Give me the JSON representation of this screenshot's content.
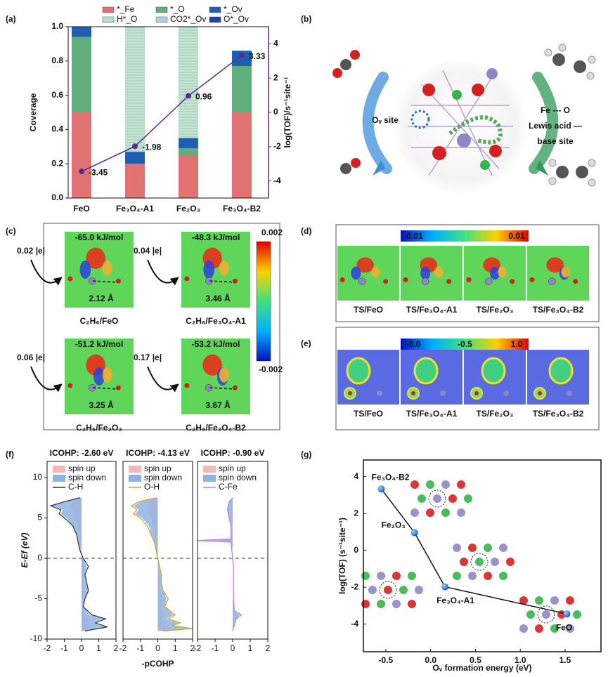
{
  "chart_data": [
    {
      "type": "bar",
      "stacked": true,
      "ylabel": "Coverage",
      "y2label": "log(TOF)/s⁻¹site⁻¹",
      "categories": [
        "FeO",
        "Fe₃O₄-A1",
        "Fe₂O₃",
        "Fe₃O₄-B2"
      ],
      "ylim": [
        0,
        1
      ],
      "yticks": [
        {
          "value": 0,
          "label": "0.0"
        },
        0.2,
        0.4,
        0.6,
        0.8,
        {
          "value": 1,
          "label": "1.0"
        }
      ],
      "y2lim": [
        -5,
        5
      ],
      "y2ticks": [
        -4,
        -2,
        0,
        2,
        4
      ],
      "series": [
        {
          "name": "*_Fe",
          "color": "#e07272",
          "values": [
            0.5,
            0.2,
            0.25,
            0.5
          ]
        },
        {
          "name": "*_O",
          "color": "#5fae7c",
          "values": [
            0.44,
            0,
            0.04,
            0.27
          ]
        },
        {
          "name": "*_Ov",
          "color": "#1e5fb4",
          "values": [
            0.06,
            0.07,
            0.06,
            0.09
          ]
        },
        {
          "name": "H*_O",
          "color": "#c4e4d4",
          "values": [
            0,
            0.73,
            0.65,
            0
          ]
        },
        {
          "name": "CO2*_Ov",
          "color": "#b6cde0",
          "values": [
            0,
            0,
            0,
            0
          ]
        },
        {
          "name": "O*_Ov",
          "color": "#23409c",
          "values": [
            0,
            0,
            0,
            0
          ]
        },
        {
          "name": "log(TOF)",
          "color": "#5b2c8e",
          "axis": "y2",
          "values": [
            -3.45,
            -1.98,
            0.96,
            3.33
          ]
        }
      ]
    },
    {
      "type": "area",
      "title": "ICOHP: -2.60 eV",
      "title_color": "#222222",
      "ylabel": "E-Ef (eV)",
      "xlim": [
        -2,
        2
      ],
      "xticks": [
        -2,
        -1,
        0,
        1,
        2
      ],
      "ylim": [
        -10,
        12
      ],
      "yticks": [
        -10,
        -5,
        0,
        5,
        10
      ],
      "y": [
        -9,
        -8.5,
        -8,
        -7.5,
        -7,
        -6,
        -5,
        -4,
        -3,
        -2,
        -1,
        0,
        1,
        2,
        3,
        4,
        5,
        5.5,
        6,
        6.5,
        7,
        7.5
      ],
      "series": [
        {
          "name": "spin up",
          "color": "#f4b8b8",
          "values": [
            0.1,
            0.6,
            0.3,
            0.5,
            0.2,
            0,
            0.1,
            0.1,
            0.1,
            0.1,
            0.2,
            0.1,
            0,
            -0.1,
            -0.1,
            -0.2,
            -0.4,
            -0.5,
            -0.5,
            -0.7,
            -0.4,
            0
          ]
        },
        {
          "name": "spin down",
          "color": "#8fb4e3",
          "values": [
            0.2,
            1.4,
            0.7,
            1.3,
            0.5,
            0.1,
            0.2,
            0.4,
            0.3,
            0.2,
            0.3,
            0.1,
            -0.1,
            -0.2,
            -0.3,
            -0.5,
            -0.9,
            -1.2,
            -1.1,
            -1.7,
            -0.9,
            -0.1
          ]
        },
        {
          "name": "C-H",
          "color": "#333333",
          "values": [
            0.2,
            1.5,
            0.8,
            1.4,
            0.6,
            0.1,
            0.2,
            0.4,
            0.3,
            0.2,
            0.4,
            0.1,
            -0.1,
            -0.2,
            -0.3,
            -0.5,
            -1.0,
            -1.3,
            -1.2,
            -1.8,
            -1.0,
            -0.1
          ]
        }
      ]
    },
    {
      "type": "area",
      "title": "ICOHP: -4.13 eV",
      "title_color": "#d4a017",
      "xlabel": "-pCOHP",
      "xlim": [
        -2,
        2
      ],
      "xticks": [
        -2,
        -1,
        0,
        1,
        2
      ],
      "ylim": [
        -10,
        12
      ],
      "y": [
        -9,
        -8.7,
        -8.3,
        -8,
        -7.5,
        -7,
        -6,
        -5,
        -4,
        -3,
        -2,
        -1,
        0,
        1,
        2,
        3,
        4,
        5,
        5.5,
        6,
        6.5,
        7,
        7.5
      ],
      "series": [
        {
          "name": "spin up",
          "color": "#f4b8b8",
          "values": [
            0.1,
            0.8,
            0.3,
            0.5,
            0.2,
            0.4,
            0.2,
            0.2,
            0.1,
            0.1,
            0.1,
            0,
            0,
            0,
            -0.1,
            -0.2,
            -0.3,
            -0.4,
            -0.6,
            -0.5,
            -0.6,
            -0.5,
            0
          ]
        },
        {
          "name": "spin down",
          "color": "#8fb4e3",
          "values": [
            0.3,
            1.8,
            0.7,
            1.2,
            0.5,
            0.9,
            0.4,
            0.5,
            0.3,
            0.2,
            0.2,
            0.1,
            0,
            -0.1,
            -0.2,
            -0.4,
            -0.5,
            -0.9,
            -1.3,
            -1.1,
            -1.4,
            -1.0,
            -0.1
          ]
        },
        {
          "name": "O-H",
          "color": "#d4a017",
          "values": [
            0.3,
            2.0,
            0.8,
            1.3,
            0.6,
            1.0,
            0.4,
            0.6,
            0.3,
            0.2,
            0.2,
            0.1,
            0,
            -0.1,
            -0.2,
            -0.4,
            -0.6,
            -1.0,
            -1.4,
            -1.2,
            -1.5,
            -1.1,
            -0.1
          ]
        }
      ]
    },
    {
      "type": "area",
      "title": "ICOHP: -0.90 eV",
      "title_color": "#b07cd8",
      "xlim": [
        -2,
        2
      ],
      "xticks": [
        -2,
        -1,
        0,
        1,
        2
      ],
      "ylim": [
        -10,
        12
      ],
      "y": [
        -9,
        -7.5,
        -7,
        -6.5,
        -5,
        -3,
        -1,
        0,
        1,
        2,
        2.2,
        2.4,
        3,
        4,
        5,
        6,
        7,
        7.5
      ],
      "series": [
        {
          "name": "spin up",
          "color": "#f4b8b8",
          "values": [
            0,
            0.1,
            0.2,
            0,
            0,
            0,
            0,
            0,
            0,
            0,
            -0.8,
            0,
            0,
            0,
            -0.1,
            -0.1,
            -0.1,
            0
          ]
        },
        {
          "name": "spin down",
          "color": "#8fb4e3",
          "values": [
            0,
            0.2,
            0.4,
            0.1,
            0,
            0,
            0,
            0,
            0,
            -0.1,
            -1.9,
            -0.1,
            -0.1,
            -0.1,
            -0.2,
            -0.3,
            -0.2,
            0
          ]
        },
        {
          "name": "C-Fe",
          "color": "#c27ad6",
          "values": [
            0,
            0.2,
            0.5,
            0.1,
            0.05,
            0.05,
            0.05,
            0,
            -0.05,
            -0.1,
            -2.0,
            -0.1,
            -0.1,
            -0.1,
            -0.2,
            -0.3,
            -0.2,
            0
          ]
        }
      ]
    },
    {
      "type": "scatter",
      "xlabel": "Oᵥ formation energy (eV)",
      "ylabel": "log(TOF) (s⁻¹site⁻¹)",
      "categories": [
        "Fe₃O₄-B2",
        "Fe₂O₃",
        "Fe₃O₄-A1",
        "FeO"
      ],
      "x": [
        -0.55,
        -0.18,
        0.16,
        1.52
      ],
      "values": [
        3.33,
        0.96,
        -1.98,
        -3.45
      ],
      "color": "#1f6fd1",
      "xlim": [
        -0.75,
        1.9
      ],
      "xticks": [
        -0.5,
        {
          "value": 0,
          "label": "0.0"
        },
        0.5,
        {
          "value": 1,
          "label": "1.0"
        },
        1.5
      ],
      "ylim": [
        -5.5,
        4.9
      ],
      "yticks": [
        -4,
        -2,
        0,
        2,
        4
      ]
    }
  ],
  "panels": {
    "labels": [
      "(a)",
      "(b)",
      "(c)",
      "(d)",
      "(e)",
      "(f)",
      "(g)"
    ],
    "b": {
      "ov_site": "Oᵥ site",
      "lines": [
        "Fe --- O",
        "Lewis acid —",
        "base site"
      ]
    },
    "c": {
      "tiles": [
        {
          "energy": "-65.0 kJ/mol",
          "charge": "0.02 |e|",
          "distance": "2.12 Å",
          "caption": "C₂H₆/FeO"
        },
        {
          "energy": "-48.3 kJ/mol",
          "charge": "0.04 |e|",
          "distance": "3.46 Å",
          "caption": "C₂H₆/Fe₃O₄-A1"
        },
        {
          "energy": "-51.2 kJ/mol",
          "charge": "0.06 |e|",
          "distance": "3.25 Å",
          "caption": "C₂H₆/Fe₂O₃"
        },
        {
          "energy": "-53.2 kJ/mol",
          "charge": "0.17 |e|",
          "distance": "3.67 Å",
          "caption": "C₂H₆/Fe₃O₄-B2"
        }
      ],
      "colorbar": [
        "0.002",
        "-0.002"
      ]
    },
    "d": {
      "colorbar": [
        "-0.01",
        "0.01"
      ],
      "captions": [
        "TS/FeO",
        "TS/Fe₃O₄-A1",
        "TS/Fe₂O₃",
        "TS/Fe₃O₄-B2"
      ]
    },
    "e": {
      "colorbar": [
        "-0.0",
        "-0.5",
        "1.0"
      ],
      "captions": [
        "TS/FeO",
        "TS/Fe₃O₄-A1",
        "TS/Fe₂O₃",
        "TS/Fe₃O₄-B2"
      ]
    }
  }
}
